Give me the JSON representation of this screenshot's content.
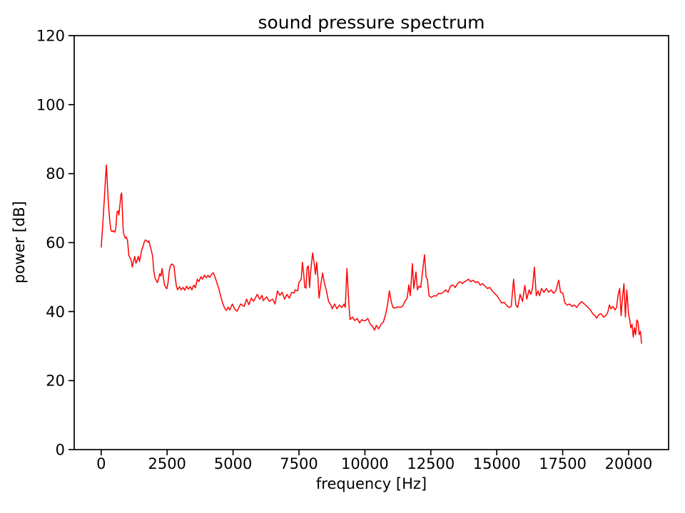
{
  "chart_data": {
    "type": "line",
    "title": "sound pressure spectrum",
    "xlabel": "frequency [Hz]",
    "ylabel": "power [dB]",
    "xlim": [
      -1024,
      21515
    ],
    "ylim": [
      0,
      120
    ],
    "xticks": [
      0,
      2500,
      5000,
      7500,
      10000,
      12500,
      15000,
      17500,
      20000
    ],
    "yticks": [
      0,
      20,
      40,
      60,
      80,
      100,
      120
    ],
    "grid": false,
    "legend": null,
    "line_color": "#ff0000",
    "axis_color": "#000000",
    "background_color": "#ffffff",
    "series_name": "sound pressure spectrum",
    "points": [
      [
        0,
        58.7
      ],
      [
        55,
        64.9
      ],
      [
        117,
        72.5
      ],
      [
        170,
        79.7
      ],
      [
        198,
        82.5
      ],
      [
        235,
        76.6
      ],
      [
        280,
        70.4
      ],
      [
        325,
        66.3
      ],
      [
        370,
        63.5
      ],
      [
        415,
        63.2
      ],
      [
        460,
        63.5
      ],
      [
        506,
        63.0
      ],
      [
        551,
        63.9
      ],
      [
        595,
        68.7
      ],
      [
        640,
        69.2
      ],
      [
        668,
        68.0
      ],
      [
        712,
        71.1
      ],
      [
        750,
        73.9
      ],
      [
        776,
        74.4
      ],
      [
        803,
        69.0
      ],
      [
        840,
        62.9
      ],
      [
        875,
        62.2
      ],
      [
        911,
        61.3
      ],
      [
        955,
        61.6
      ],
      [
        1000,
        60.5
      ],
      [
        1046,
        56.3
      ],
      [
        1090,
        55.6
      ],
      [
        1136,
        54.9
      ],
      [
        1181,
        52.9
      ],
      [
        1226,
        54.6
      ],
      [
        1271,
        56.0
      ],
      [
        1317,
        54.0
      ],
      [
        1362,
        54.9
      ],
      [
        1407,
        56.0
      ],
      [
        1452,
        54.5
      ],
      [
        1497,
        56.3
      ],
      [
        1542,
        58.0
      ],
      [
        1588,
        58.9
      ],
      [
        1633,
        60.2
      ],
      [
        1678,
        60.8
      ],
      [
        1723,
        60.5
      ],
      [
        1768,
        60.1
      ],
      [
        1813,
        60.5
      ],
      [
        1858,
        58.9
      ],
      [
        1904,
        57.7
      ],
      [
        1949,
        56.0
      ],
      [
        1994,
        51.8
      ],
      [
        2039,
        49.8
      ],
      [
        2084,
        49.1
      ],
      [
        2130,
        48.4
      ],
      [
        2174,
        49.4
      ],
      [
        2219,
        51.0
      ],
      [
        2265,
        50.3
      ],
      [
        2310,
        52.5
      ],
      [
        2354,
        50.1
      ],
      [
        2400,
        47.7
      ],
      [
        2444,
        47.2
      ],
      [
        2490,
        46.6
      ],
      [
        2535,
        48.4
      ],
      [
        2580,
        51.8
      ],
      [
        2625,
        53.2
      ],
      [
        2670,
        53.8
      ],
      [
        2716,
        53.6
      ],
      [
        2761,
        53.2
      ],
      [
        2806,
        49.9
      ],
      [
        2851,
        47.4
      ],
      [
        2896,
        46.3
      ],
      [
        2968,
        47.2
      ],
      [
        3032,
        46.3
      ],
      [
        3104,
        47.0
      ],
      [
        3167,
        46.2
      ],
      [
        3240,
        47.4
      ],
      [
        3302,
        46.5
      ],
      [
        3375,
        47.2
      ],
      [
        3438,
        46.3
      ],
      [
        3510,
        47.7
      ],
      [
        3572,
        46.9
      ],
      [
        3645,
        49.4
      ],
      [
        3707,
        48.7
      ],
      [
        3780,
        50.1
      ],
      [
        3842,
        49.4
      ],
      [
        3915,
        50.6
      ],
      [
        3977,
        49.8
      ],
      [
        4050,
        50.5
      ],
      [
        4113,
        49.9
      ],
      [
        4186,
        50.8
      ],
      [
        4248,
        51.3
      ],
      [
        4321,
        49.9
      ],
      [
        4384,
        48.4
      ],
      [
        4457,
        46.7
      ],
      [
        4530,
        44.5
      ],
      [
        4610,
        42.3
      ],
      [
        4680,
        41.0
      ],
      [
        4744,
        40.3
      ],
      [
        4810,
        41.3
      ],
      [
        4880,
        40.5
      ],
      [
        4971,
        42.2
      ],
      [
        5060,
        40.8
      ],
      [
        5150,
        40.1
      ],
      [
        5285,
        42.2
      ],
      [
        5420,
        41.5
      ],
      [
        5512,
        43.6
      ],
      [
        5602,
        42.0
      ],
      [
        5691,
        43.9
      ],
      [
        5781,
        43.0
      ],
      [
        5917,
        45.0
      ],
      [
        6007,
        43.6
      ],
      [
        6100,
        44.7
      ],
      [
        6143,
        43.2
      ],
      [
        6277,
        44.3
      ],
      [
        6368,
        43.0
      ],
      [
        6502,
        43.6
      ],
      [
        6592,
        42.2
      ],
      [
        6683,
        46.0
      ],
      [
        6773,
        44.7
      ],
      [
        6863,
        45.6
      ],
      [
        6953,
        43.6
      ],
      [
        7043,
        45.0
      ],
      [
        7134,
        43.9
      ],
      [
        7224,
        45.6
      ],
      [
        7314,
        45.4
      ],
      [
        7359,
        46.3
      ],
      [
        7450,
        46.0
      ],
      [
        7495,
        48.4
      ],
      [
        7585,
        49.4
      ],
      [
        7630,
        54.3
      ],
      [
        7675,
        51.2
      ],
      [
        7720,
        47.0
      ],
      [
        7765,
        46.8
      ],
      [
        7810,
        52.9
      ],
      [
        7855,
        53.2
      ],
      [
        7900,
        47.0
      ],
      [
        7945,
        51.8
      ],
      [
        8017,
        57.0
      ],
      [
        8081,
        53.6
      ],
      [
        8126,
        50.8
      ],
      [
        8171,
        54.3
      ],
      [
        8216,
        50.0
      ],
      [
        8261,
        43.9
      ],
      [
        8325,
        47.7
      ],
      [
        8397,
        51.2
      ],
      [
        8469,
        48.1
      ],
      [
        8532,
        46.3
      ],
      [
        8623,
        42.9
      ],
      [
        8713,
        41.9
      ],
      [
        8758,
        40.8
      ],
      [
        8849,
        42.2
      ],
      [
        8939,
        40.8
      ],
      [
        9029,
        41.9
      ],
      [
        9120,
        41.2
      ],
      [
        9210,
        42.2
      ],
      [
        9255,
        41.2
      ],
      [
        9318,
        52.5
      ],
      [
        9391,
        42.2
      ],
      [
        9436,
        37.7
      ],
      [
        9526,
        38.4
      ],
      [
        9616,
        37.4
      ],
      [
        9707,
        38.0
      ],
      [
        9797,
        36.7
      ],
      [
        9888,
        37.7
      ],
      [
        9932,
        37.4
      ],
      [
        10022,
        37.4
      ],
      [
        10112,
        38.0
      ],
      [
        10203,
        36.3
      ],
      [
        10293,
        35.7
      ],
      [
        10366,
        34.6
      ],
      [
        10429,
        36.0
      ],
      [
        10519,
        35.0
      ],
      [
        10610,
        36.3
      ],
      [
        10700,
        37.0
      ],
      [
        10790,
        39.4
      ],
      [
        10862,
        42.2
      ],
      [
        10926,
        46.0
      ],
      [
        10997,
        42.9
      ],
      [
        11061,
        41.2
      ],
      [
        11151,
        41.0
      ],
      [
        11241,
        41.4
      ],
      [
        11332,
        41.2
      ],
      [
        11422,
        41.5
      ],
      [
        11512,
        42.9
      ],
      [
        11602,
        43.9
      ],
      [
        11665,
        47.7
      ],
      [
        11719,
        44.6
      ],
      [
        11800,
        53.9
      ],
      [
        11854,
        46.7
      ],
      [
        11936,
        51.5
      ],
      [
        11990,
        46.3
      ],
      [
        12053,
        47.4
      ],
      [
        12116,
        47.0
      ],
      [
        12260,
        56.5
      ],
      [
        12323,
        49.8
      ],
      [
        12368,
        49.4
      ],
      [
        12431,
        44.6
      ],
      [
        12521,
        44.1
      ],
      [
        12612,
        44.6
      ],
      [
        12702,
        44.5
      ],
      [
        12792,
        45.3
      ],
      [
        12883,
        45.2
      ],
      [
        12973,
        45.6
      ],
      [
        13063,
        46.3
      ],
      [
        13154,
        45.6
      ],
      [
        13244,
        47.4
      ],
      [
        13334,
        47.7
      ],
      [
        13425,
        47.0
      ],
      [
        13515,
        48.1
      ],
      [
        13605,
        48.7
      ],
      [
        13696,
        48.1
      ],
      [
        13786,
        48.7
      ],
      [
        13876,
        49.1
      ],
      [
        13922,
        49.4
      ],
      [
        14012,
        48.7
      ],
      [
        14102,
        49.1
      ],
      [
        14193,
        48.4
      ],
      [
        14283,
        48.7
      ],
      [
        14373,
        47.7
      ],
      [
        14464,
        48.1
      ],
      [
        14554,
        47.4
      ],
      [
        14644,
        46.7
      ],
      [
        14735,
        47.0
      ],
      [
        14825,
        46.0
      ],
      [
        14915,
        45.3
      ],
      [
        15006,
        44.6
      ],
      [
        15096,
        43.6
      ],
      [
        15186,
        42.5
      ],
      [
        15277,
        42.7
      ],
      [
        15367,
        41.9
      ],
      [
        15457,
        41.2
      ],
      [
        15548,
        41.5
      ],
      [
        15638,
        49.4
      ],
      [
        15722,
        41.9
      ],
      [
        15795,
        41.2
      ],
      [
        15885,
        45.0
      ],
      [
        15975,
        42.9
      ],
      [
        16065,
        47.6
      ],
      [
        16137,
        43.6
      ],
      [
        16227,
        46.3
      ],
      [
        16290,
        45.0
      ],
      [
        16353,
        46.7
      ],
      [
        16425,
        52.9
      ],
      [
        16498,
        44.6
      ],
      [
        16561,
        46.0
      ],
      [
        16624,
        44.6
      ],
      [
        16696,
        46.7
      ],
      [
        16787,
        45.6
      ],
      [
        16877,
        46.7
      ],
      [
        16967,
        45.6
      ],
      [
        17057,
        46.3
      ],
      [
        17148,
        45.3
      ],
      [
        17238,
        46.0
      ],
      [
        17347,
        49.1
      ],
      [
        17419,
        45.6
      ],
      [
        17509,
        45.3
      ],
      [
        17582,
        42.5
      ],
      [
        17672,
        41.9
      ],
      [
        17762,
        42.2
      ],
      [
        17853,
        41.5
      ],
      [
        17943,
        41.9
      ],
      [
        18033,
        41.2
      ],
      [
        18123,
        42.2
      ],
      [
        18214,
        42.9
      ],
      [
        18277,
        42.5
      ],
      [
        18367,
        41.9
      ],
      [
        18458,
        41.2
      ],
      [
        18548,
        40.5
      ],
      [
        18638,
        39.4
      ],
      [
        18729,
        38.8
      ],
      [
        18792,
        38.1
      ],
      [
        18864,
        39.1
      ],
      [
        18955,
        39.4
      ],
      [
        19045,
        38.4
      ],
      [
        19135,
        38.8
      ],
      [
        19208,
        39.8
      ],
      [
        19271,
        41.9
      ],
      [
        19334,
        40.8
      ],
      [
        19406,
        41.5
      ],
      [
        19479,
        40.5
      ],
      [
        19542,
        41.2
      ],
      [
        19605,
        45.0
      ],
      [
        19660,
        46.7
      ],
      [
        19714,
        38.8
      ],
      [
        19768,
        44.3
      ],
      [
        19822,
        48.1
      ],
      [
        19877,
        38.4
      ],
      [
        19931,
        46.3
      ],
      [
        19994,
        39.4
      ],
      [
        20039,
        37.7
      ],
      [
        20084,
        35.3
      ],
      [
        20129,
        36.3
      ],
      [
        20175,
        32.6
      ],
      [
        20220,
        35.3
      ],
      [
        20265,
        33.3
      ],
      [
        20310,
        37.6
      ],
      [
        20355,
        37.0
      ],
      [
        20400,
        33.3
      ],
      [
        20445,
        34.3
      ],
      [
        20490,
        30.8
      ]
    ]
  }
}
